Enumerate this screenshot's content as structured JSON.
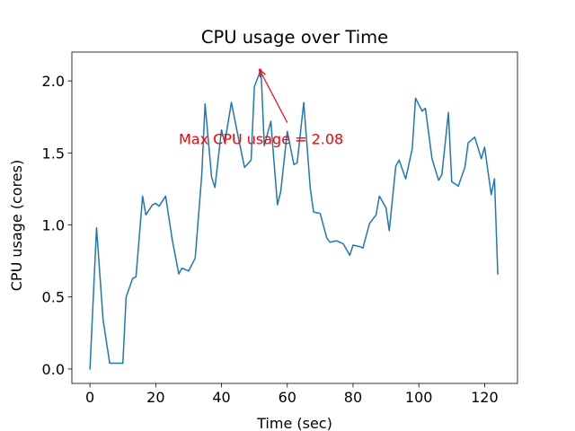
{
  "chart_data": {
    "type": "line",
    "title": "CPU usage over Time",
    "xlabel": "Time (sec)",
    "ylabel": "CPU usage (cores)",
    "xlim": [
      -5.5,
      130
    ],
    "ylim": [
      -0.1,
      2.2
    ],
    "xticks": [
      0,
      20,
      40,
      60,
      80,
      100,
      120
    ],
    "yticks": [
      0.0,
      0.5,
      1.0,
      1.5,
      2.0
    ],
    "xtick_labels": [
      "0",
      "20",
      "40",
      "60",
      "80",
      "100",
      "120"
    ],
    "ytick_labels": [
      "0.0",
      "0.5",
      "1.0",
      "1.5",
      "2.0"
    ],
    "grid": false,
    "series": [
      {
        "color": "#1f77b4",
        "x": [
          0,
          2,
          4,
          6,
          8,
          10,
          11,
          13,
          14,
          16,
          17,
          19,
          20,
          21,
          23,
          25,
          27,
          28,
          30,
          32,
          34,
          35,
          37,
          38,
          40,
          41,
          43,
          45,
          47,
          49,
          50,
          52,
          53,
          55,
          57,
          58,
          60,
          62,
          63,
          65,
          67,
          68,
          70,
          72,
          73,
          75,
          77,
          79,
          80,
          82,
          83,
          85,
          87,
          88,
          90,
          91,
          93,
          94,
          96,
          98,
          99,
          101,
          102,
          104,
          106,
          107,
          109,
          110,
          112,
          114,
          115,
          117,
          119,
          120,
          122,
          123,
          124
        ],
        "y": [
          0.0,
          0.98,
          0.34,
          0.04,
          0.04,
          0.04,
          0.5,
          0.63,
          0.64,
          1.2,
          1.07,
          1.14,
          1.15,
          1.13,
          1.2,
          0.9,
          0.66,
          0.7,
          0.68,
          0.77,
          1.35,
          1.84,
          1.33,
          1.26,
          1.66,
          1.57,
          1.85,
          1.62,
          1.4,
          1.45,
          1.96,
          2.08,
          1.55,
          1.72,
          1.14,
          1.23,
          1.65,
          1.42,
          1.43,
          1.85,
          1.25,
          1.09,
          1.08,
          0.91,
          0.88,
          0.89,
          0.87,
          0.79,
          0.86,
          0.85,
          0.84,
          1.01,
          1.07,
          1.2,
          1.12,
          0.96,
          1.41,
          1.45,
          1.32,
          1.53,
          1.88,
          1.79,
          1.81,
          1.46,
          1.31,
          1.35,
          1.78,
          1.3,
          1.27,
          1.4,
          1.57,
          1.61,
          1.46,
          1.54,
          1.21,
          1.32,
          0.66
        ]
      }
    ],
    "annotation": {
      "text": "Max CPU usage = 2.08",
      "point": [
        51.5,
        2.08
      ],
      "text_at": [
        27,
        1.6
      ],
      "arrow_tail": [
        60,
        1.71
      ],
      "color": "#ff0000"
    }
  }
}
